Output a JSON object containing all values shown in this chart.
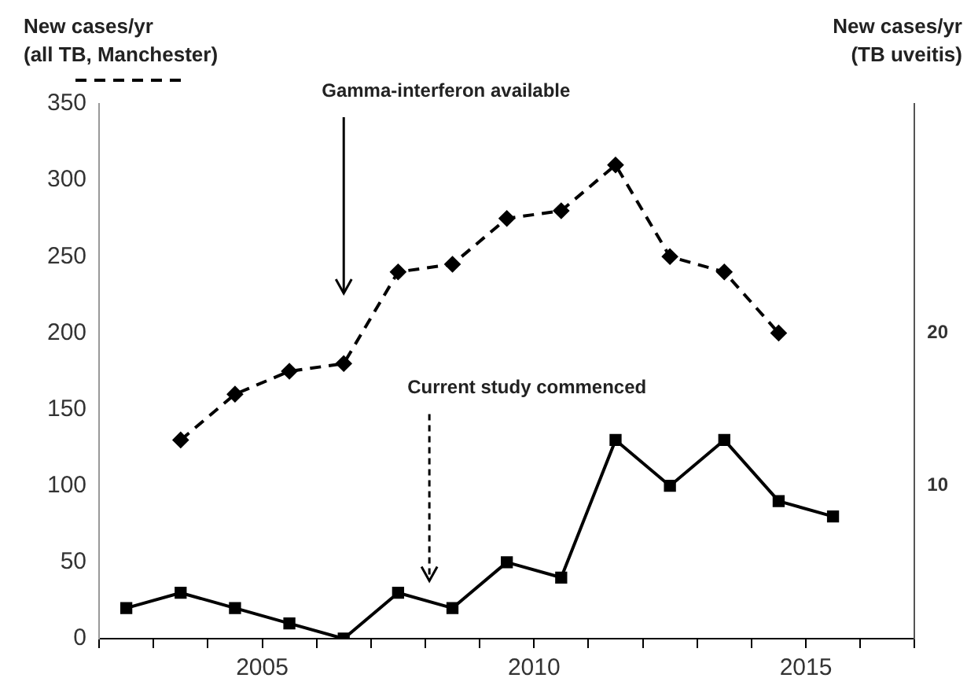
{
  "chart_data": {
    "type": "line",
    "ylabel": "New cases/yr\n(all TB, Manchester)",
    "y2label": "New cases/yr\n(TB uveitis)",
    "xlim": [
      2002,
      2017
    ],
    "xticks": [
      {
        "value": 2002,
        "label": null
      },
      {
        "value": 2003,
        "label": null
      },
      {
        "value": 2004,
        "label": null
      },
      2005,
      {
        "value": 2006,
        "label": null
      },
      {
        "value": 2007,
        "label": null
      },
      {
        "value": 2008,
        "label": null
      },
      {
        "value": 2009,
        "label": null
      },
      2010,
      {
        "value": 2011,
        "label": null
      },
      {
        "value": 2012,
        "label": null
      },
      {
        "value": 2013,
        "label": null
      },
      {
        "value": 2014,
        "label": null
      },
      2015,
      {
        "value": 2016,
        "label": null
      },
      {
        "value": 2017,
        "label": null
      }
    ],
    "ylim": [
      0,
      350
    ],
    "yticks": [
      0,
      50,
      100,
      150,
      200,
      250,
      300,
      350
    ],
    "y2lim": [
      0,
      35
    ],
    "y2ticks": [
      10,
      20
    ],
    "grid": false,
    "series": [
      {
        "color": "#000000",
        "line_style": "dashed",
        "marker": "diamond",
        "axis": "y",
        "x": [
          2003.5,
          2004.5,
          2005.5,
          2006.5,
          2007.5,
          2008.5,
          2009.5,
          2010.5,
          2011.5,
          2012.5,
          2013.5,
          2014.5
        ],
        "values": [
          130,
          160,
          175,
          180,
          240,
          245,
          275,
          280,
          310,
          250,
          240,
          200
        ]
      },
      {
        "color": "#000000",
        "line_style": "solid",
        "marker": "square",
        "axis": "y2",
        "x": [
          2002.5,
          2003.5,
          2004.5,
          2005.5,
          2006.5,
          2007.5,
          2008.5,
          2009.5,
          2010.5,
          2011.5,
          2012.5,
          2013.5,
          2014.5,
          2015.5
        ],
        "values": [
          2,
          3,
          2,
          1,
          0,
          3,
          2,
          5,
          4,
          13,
          10,
          13,
          9,
          8
        ]
      }
    ],
    "annotations": [
      "Gamma-interferon available",
      "Current study commenced"
    ]
  }
}
